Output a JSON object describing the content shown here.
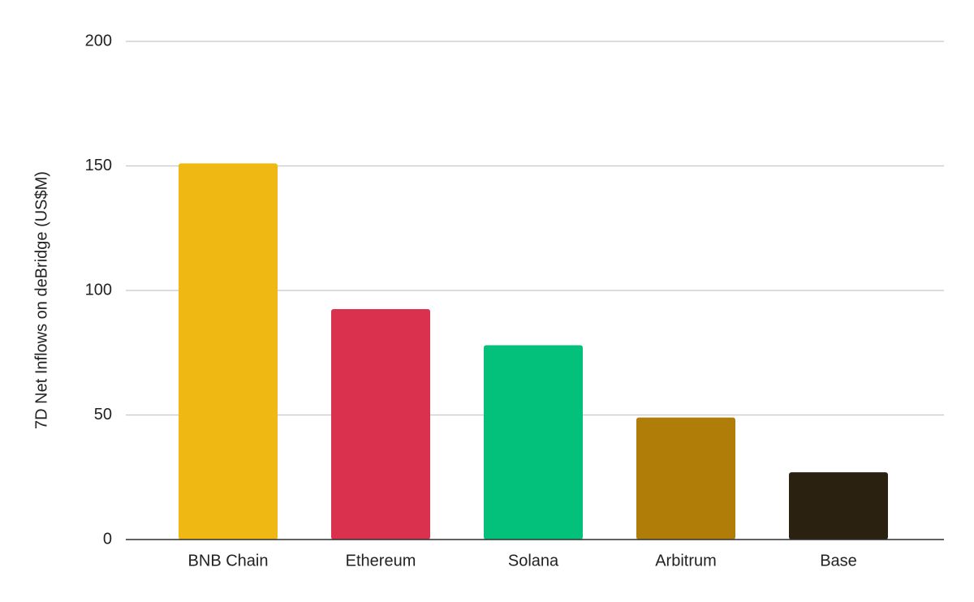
{
  "chart_data": {
    "type": "bar",
    "y_label": "7D Net Inflows on deBridge (US$M)",
    "categories": [
      "BNB Chain",
      "Ethereum",
      "Solana",
      "Arbitrum",
      "Base"
    ],
    "values": [
      151,
      92.5,
      78,
      49,
      27
    ],
    "colors": [
      "#efb812",
      "#da314f",
      "#03c07b",
      "#b07e08",
      "#2a2110"
    ],
    "ylim": [
      0,
      200
    ],
    "yticks": [
      0,
      50,
      100,
      150,
      200
    ],
    "grid": true
  }
}
